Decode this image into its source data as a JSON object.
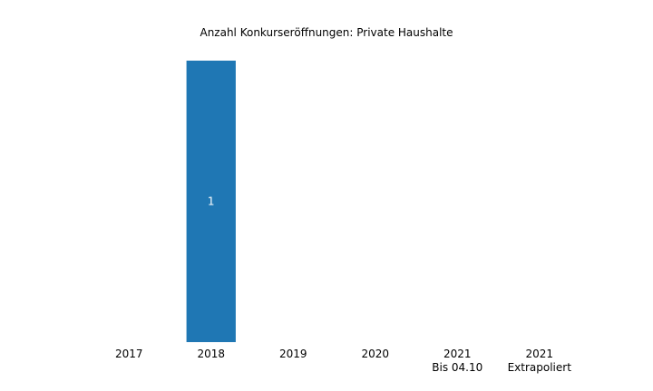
{
  "chart_data": {
    "type": "bar",
    "title": "Anzahl Konkurseröffnungen: Private Haushalte",
    "categories": [
      [
        "2017"
      ],
      [
        "2018"
      ],
      [
        "2019"
      ],
      [
        "2020"
      ],
      [
        "2021",
        "Bis 04.10"
      ],
      [
        "2021",
        "Extrapoliert"
      ]
    ],
    "values": [
      0,
      1,
      0,
      0,
      0,
      0
    ],
    "data_labels": [
      "",
      "1",
      "",
      "",
      "",
      ""
    ],
    "ylim": [
      0,
      1
    ],
    "grid": false,
    "colors": {
      "bar": "#1f77b4",
      "bar_label": "#ffffff"
    }
  }
}
